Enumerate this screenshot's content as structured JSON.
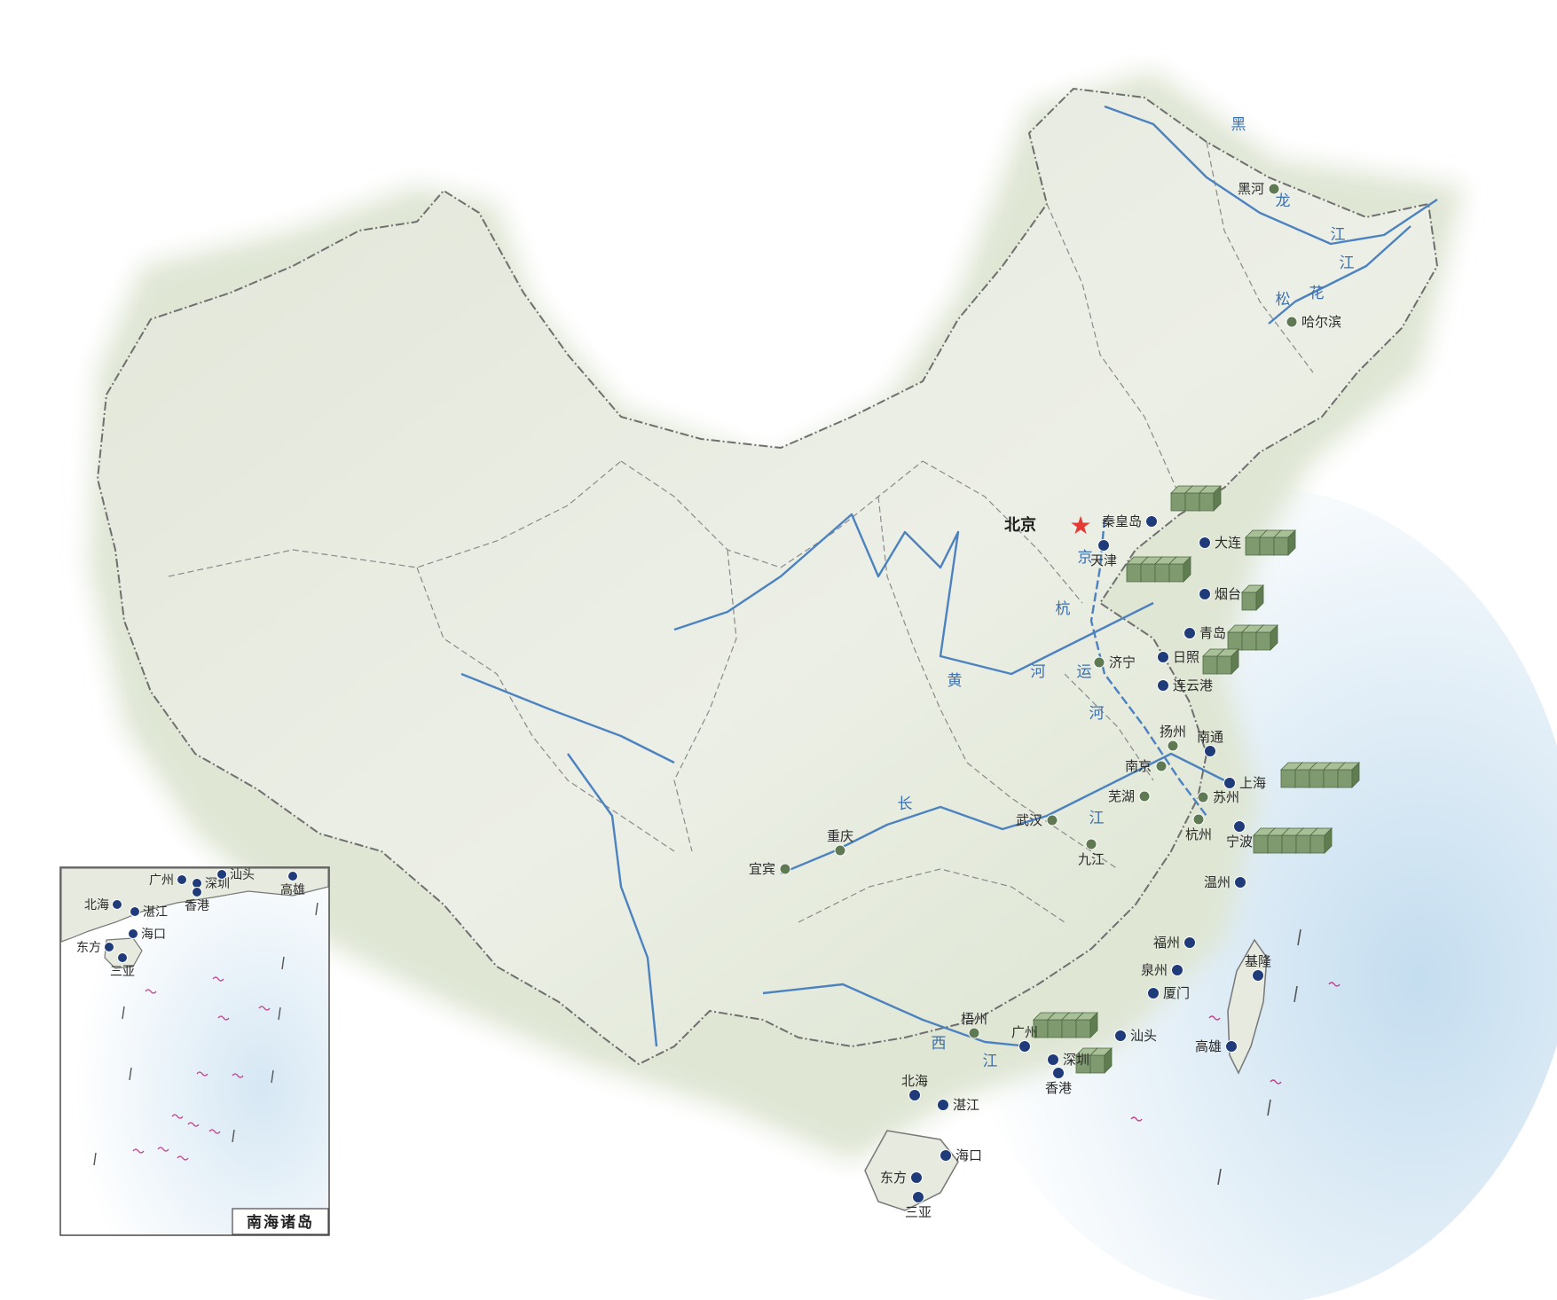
{
  "capital": {
    "label": "北京",
    "icon": "red-star-icon",
    "color": "#e53935"
  },
  "colors": {
    "port_dot": "#1f3b7a",
    "city_dot": "#5f7a52",
    "river": "#4c82c0",
    "land": "#e9ece2",
    "sea": "#cfe4f2",
    "cargo_block": "#7f9a6e",
    "island_mark": "#c2408e"
  },
  "ports": [
    {
      "id": "qinhuangdao",
      "label": "秦皇岛",
      "blocks": 3
    },
    {
      "id": "dalian",
      "label": "大连",
      "blocks": 3
    },
    {
      "id": "tianjin",
      "label": "天津",
      "blocks": 4
    },
    {
      "id": "yantai",
      "label": "烟台",
      "blocks": 1
    },
    {
      "id": "qingdao",
      "label": "青岛",
      "blocks": 3
    },
    {
      "id": "rizhao",
      "label": "日照",
      "blocks": 2
    },
    {
      "id": "lianyungang",
      "label": "连云港",
      "blocks": 0
    },
    {
      "id": "nantong",
      "label": "南通",
      "blocks": 0
    },
    {
      "id": "shanghai",
      "label": "上海",
      "blocks": 5
    },
    {
      "id": "ningbo",
      "label": "宁波",
      "blocks": 5
    },
    {
      "id": "wenzhou",
      "label": "温州",
      "blocks": 0
    },
    {
      "id": "fuzhou",
      "label": "福州",
      "blocks": 0
    },
    {
      "id": "quanzhou",
      "label": "泉州",
      "blocks": 0
    },
    {
      "id": "xiamen",
      "label": "厦门",
      "blocks": 0
    },
    {
      "id": "jilong",
      "label": "基隆",
      "blocks": 0
    },
    {
      "id": "gaoxiong",
      "label": "高雄",
      "blocks": 0
    },
    {
      "id": "shantou",
      "label": "汕头",
      "blocks": 0
    },
    {
      "id": "guangzhou",
      "label": "广州",
      "blocks": 4
    },
    {
      "id": "shenzhen",
      "label": "深圳",
      "blocks": 2
    },
    {
      "id": "xianggang",
      "label": "香港",
      "blocks": 0
    },
    {
      "id": "beihai",
      "label": "北海",
      "blocks": 0
    },
    {
      "id": "zhanjiang",
      "label": "湛江",
      "blocks": 0
    },
    {
      "id": "haikou",
      "label": "海口",
      "blocks": 0
    },
    {
      "id": "dongfang",
      "label": "东方",
      "blocks": 0
    },
    {
      "id": "sanya",
      "label": "三亚",
      "blocks": 0
    }
  ],
  "inland_cities": [
    {
      "id": "heihe",
      "label": "黑河"
    },
    {
      "id": "haerbin",
      "label": "哈尔滨"
    },
    {
      "id": "jining",
      "label": "济宁"
    },
    {
      "id": "yangzhou",
      "label": "扬州"
    },
    {
      "id": "nanjing",
      "label": "南京"
    },
    {
      "id": "wuhu",
      "label": "芜湖"
    },
    {
      "id": "suzhou",
      "label": "苏州"
    },
    {
      "id": "hangzhou",
      "label": "杭州"
    },
    {
      "id": "wuhan",
      "label": "武汉"
    },
    {
      "id": "jiujiang",
      "label": "九江"
    },
    {
      "id": "chongqing",
      "label": "重庆"
    },
    {
      "id": "yibin",
      "label": "宜宾"
    },
    {
      "id": "wuzhou",
      "label": "梧州"
    }
  ],
  "river_labels": {
    "heilongjiang": [
      "黑",
      "龙",
      "江"
    ],
    "songhuajiang": [
      "松",
      "花",
      "江"
    ],
    "huanghe": [
      "黄",
      "河"
    ],
    "changjiang": [
      "长",
      "江"
    ],
    "jinghang_canal": [
      "京",
      "杭",
      "运",
      "河"
    ],
    "xijiang": [
      "西",
      "江"
    ]
  },
  "inset": {
    "title": "南海诸岛",
    "ports": [
      "北海",
      "广州",
      "深圳",
      "汕头",
      "香港",
      "高雄",
      "湛江",
      "海口",
      "东方",
      "三亚"
    ]
  }
}
